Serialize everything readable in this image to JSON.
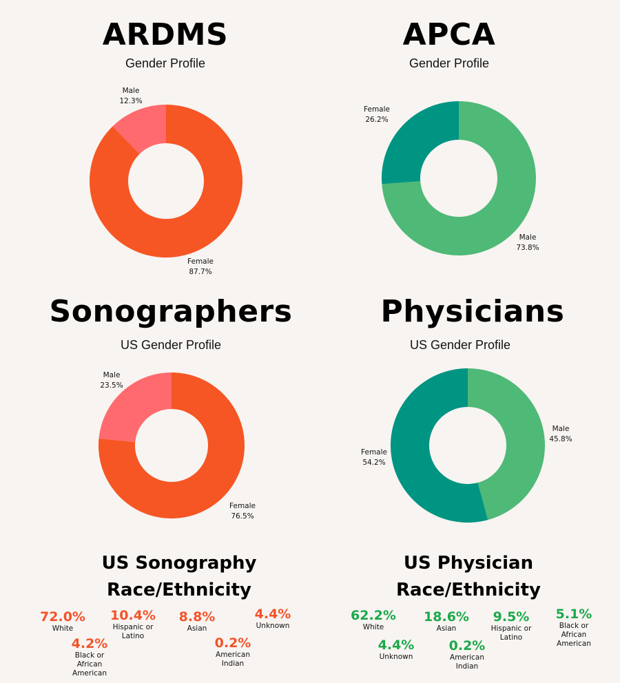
{
  "chart_data": [
    {
      "type": "pie",
      "title": "ARDMS",
      "subtitle": "Gender Profile",
      "categories": [
        "Male",
        "Female"
      ],
      "values": [
        12.3,
        87.7
      ],
      "labels": [
        "12.3%",
        "87.7%"
      ],
      "colors": [
        "#fe6a6e",
        "#f55624"
      ]
    },
    {
      "type": "pie",
      "title": "APCA",
      "subtitle": "Gender Profile",
      "categories": [
        "Female",
        "Male"
      ],
      "values": [
        26.2,
        73.8
      ],
      "labels": [
        "26.2%",
        "73.8%"
      ],
      "colors": [
        "#009483",
        "#4fb977"
      ]
    },
    {
      "type": "pie",
      "title": "Sonographers",
      "subtitle": "US Gender Profile",
      "categories": [
        "Male",
        "Female"
      ],
      "values": [
        23.5,
        76.5
      ],
      "labels": [
        "23.5%",
        "76.5%"
      ],
      "colors": [
        "#fe6a6e",
        "#f55624"
      ]
    },
    {
      "type": "pie",
      "title": "Physicians",
      "subtitle": "US Gender Profile",
      "categories": [
        "Male",
        "Female"
      ],
      "values": [
        45.8,
        54.2
      ],
      "labels": [
        "45.8%",
        "54.2%"
      ],
      "colors": [
        "#4fb977",
        "#009483"
      ]
    }
  ],
  "sonography_race": {
    "title_line1": "US Sonography",
    "title_line2": "Race/Ethnicity",
    "color": "#f2532a",
    "items": [
      {
        "value": "72.0%",
        "label": "White"
      },
      {
        "value": "10.4%",
        "label": "Hispanic or\nLatino"
      },
      {
        "value": "8.8%",
        "label": "Asian"
      },
      {
        "value": "4.4%",
        "label": "Unknown"
      },
      {
        "value": "4.2%",
        "label": "Black or\nAfrican\nAmerican"
      },
      {
        "value": "0.2%",
        "label": "American\nIndian"
      }
    ]
  },
  "physician_race": {
    "title_line1": "US Physician",
    "title_line2": "Race/Ethnicity",
    "color": "#1aa94a",
    "items": [
      {
        "value": "62.2%",
        "label": "White"
      },
      {
        "value": "18.6%",
        "label": "Asian"
      },
      {
        "value": "9.5%",
        "label": "Hispanic or\nLatino"
      },
      {
        "value": "5.1%",
        "label": "Black or\nAfrican\nAmerican"
      },
      {
        "value": "4.4%",
        "label": "Unknown"
      },
      {
        "value": "0.2%",
        "label": "American\nIndian"
      }
    ]
  }
}
